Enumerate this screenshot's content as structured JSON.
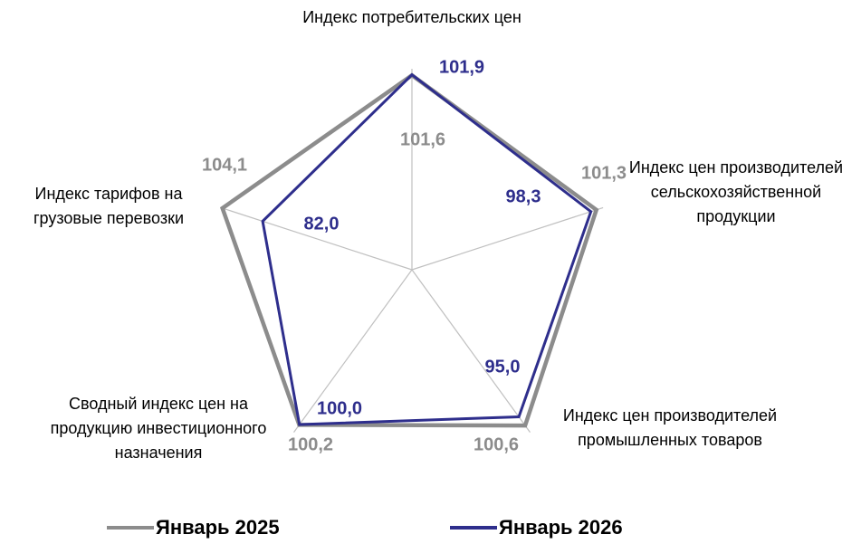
{
  "chart_data": {
    "type": "radar",
    "categories": [
      "Индекс потребительских цен",
      "Индекс цен производителей сельскохозяйственной продукции",
      "Индекс цен производителей промышленных товаров",
      "Сводный индекс цен на продукцию инвестиционного назначения",
      "Индекс тарифов на грузовые перевозки"
    ],
    "series": [
      {
        "name": "Январь 2025",
        "color": "#8c8c8c",
        "values": [
          101.6,
          101.3,
          100.6,
          100.2,
          104.1
        ],
        "value_labels": [
          "101,6",
          "101,3",
          "100,6",
          "100,2",
          "104,1"
        ]
      },
      {
        "name": "Январь 2026",
        "color": "#2e2e8c",
        "values": [
          101.9,
          98.3,
          95.0,
          100.0,
          82.0
        ],
        "value_labels": [
          "101,9",
          "98,3",
          "95,0",
          "100,0",
          "82,0"
        ]
      }
    ],
    "ylim": [
      0,
      105
    ],
    "grid": true,
    "legend": "bottom"
  }
}
